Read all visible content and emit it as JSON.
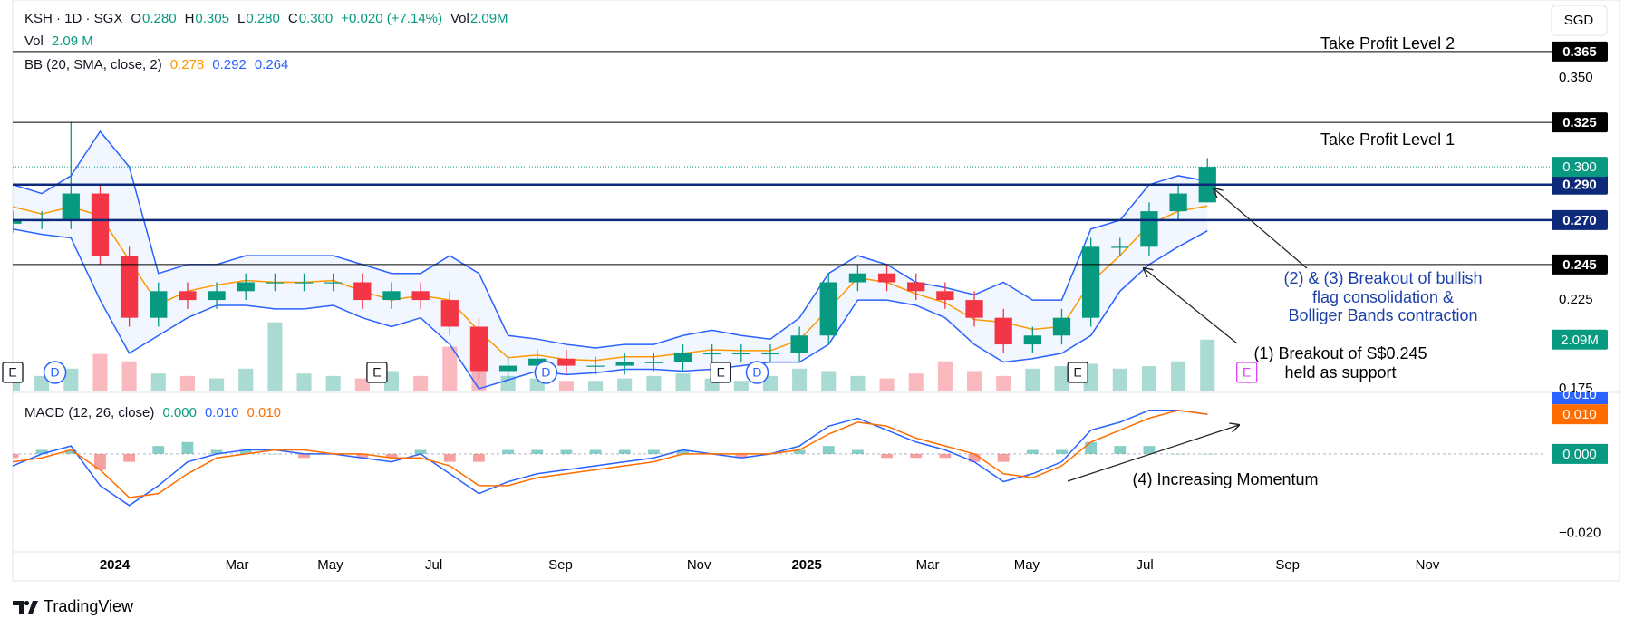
{
  "header": {
    "symbol": "KSH · 1D · SGX",
    "o_label": "O",
    "open": "0.280",
    "h_label": "H",
    "high": "0.305",
    "l_label": "L",
    "low": "0.280",
    "c_label": "C",
    "close": "0.300",
    "change": "+0.020 (+7.14%)",
    "vol_label": "Vol",
    "vol": "2.09M",
    "vol2_label": "Vol",
    "vol2": "2.09 M",
    "bb_label": "BB (20, SMA, close, 2)",
    "bb_basis": "0.278",
    "bb_upper": "0.292",
    "bb_lower": "0.264",
    "macd_label": "MACD (12, 26, close)",
    "macd_hist": "0.000",
    "macd_line": "0.010",
    "macd_signal": "0.010"
  },
  "annotations": {
    "tp2": "Take Profit Level 2",
    "tp1": "Take Profit Level 1",
    "flag1": "(2) & (3) Breakout of bullish",
    "flag2": "flag consolidation &",
    "flag3": "Bolliger Bands contraction",
    "support1": "(1) Breakout of S$0.245",
    "support2": "held as support",
    "momentum": "(4) Increasing Momentum"
  },
  "brand": "TradingView",
  "chart_data": {
    "type": "candlestick",
    "currency": "SGD",
    "x": [
      0,
      2,
      4,
      6,
      8,
      10,
      12,
      14,
      16,
      18,
      20,
      22,
      24,
      26,
      28,
      30,
      32,
      34,
      36,
      38,
      40,
      42,
      44,
      46,
      48,
      50,
      52,
      54,
      56,
      58,
      60,
      62,
      64,
      66,
      68,
      70,
      72,
      74,
      76,
      78,
      80,
      82
    ],
    "xlim": [
      0,
      105
    ],
    "xticks": [
      {
        "value": 7,
        "label": "2024"
      },
      {
        "value": 15.4,
        "label": "Mar"
      },
      {
        "value": 21.8,
        "label": "May"
      },
      {
        "value": 28.9,
        "label": "Jul"
      },
      {
        "value": 37.6,
        "label": "Sep"
      },
      {
        "value": 47.1,
        "label": "Nov"
      },
      {
        "value": 54.5,
        "label": "2025"
      },
      {
        "value": 62.8,
        "label": "Mar"
      },
      {
        "value": 69.6,
        "label": "May"
      },
      {
        "value": 77.7,
        "label": "Jul"
      },
      {
        "value": 87.5,
        "label": "Sep"
      },
      {
        "value": 97.1,
        "label": "Nov"
      }
    ],
    "ylim": [
      0.174,
      0.394
    ],
    "yticks": [
      {
        "value": 0.175,
        "label": "0.175"
      },
      {
        "value": 0.225,
        "label": "0.225"
      },
      {
        "value": 0.35,
        "label": "0.350"
      }
    ],
    "open": [
      0.268,
      0.27,
      0.27,
      0.285,
      0.25,
      0.215,
      0.23,
      0.225,
      0.23,
      0.235,
      0.235,
      0.235,
      0.235,
      0.225,
      0.23,
      0.225,
      0.21,
      0.185,
      0.188,
      0.192,
      0.188,
      0.188,
      0.19,
      0.19,
      0.195,
      0.195,
      0.195,
      0.195,
      0.205,
      0.235,
      0.24,
      0.235,
      0.23,
      0.225,
      0.215,
      0.2,
      0.205,
      0.215,
      0.255,
      0.255,
      0.275,
      0.28
    ],
    "high": [
      0.275,
      0.275,
      0.325,
      0.29,
      0.255,
      0.235,
      0.235,
      0.235,
      0.24,
      0.24,
      0.24,
      0.24,
      0.24,
      0.235,
      0.235,
      0.23,
      0.215,
      0.193,
      0.197,
      0.197,
      0.193,
      0.195,
      0.195,
      0.2,
      0.2,
      0.2,
      0.2,
      0.21,
      0.24,
      0.245,
      0.245,
      0.24,
      0.235,
      0.23,
      0.22,
      0.21,
      0.22,
      0.26,
      0.26,
      0.28,
      0.29,
      0.305
    ],
    "low": [
      0.263,
      0.265,
      0.265,
      0.245,
      0.21,
      0.21,
      0.22,
      0.22,
      0.225,
      0.23,
      0.23,
      0.23,
      0.22,
      0.22,
      0.22,
      0.205,
      0.18,
      0.18,
      0.183,
      0.183,
      0.183,
      0.183,
      0.185,
      0.185,
      0.19,
      0.19,
      0.19,
      0.19,
      0.2,
      0.23,
      0.23,
      0.225,
      0.22,
      0.21,
      0.195,
      0.195,
      0.2,
      0.21,
      0.25,
      0.25,
      0.27,
      0.28
    ],
    "close": [
      0.27,
      0.27,
      0.285,
      0.25,
      0.215,
      0.23,
      0.225,
      0.23,
      0.235,
      0.235,
      0.235,
      0.235,
      0.225,
      0.23,
      0.225,
      0.21,
      0.185,
      0.188,
      0.192,
      0.188,
      0.188,
      0.19,
      0.19,
      0.195,
      0.195,
      0.195,
      0.195,
      0.205,
      0.235,
      0.24,
      0.235,
      0.23,
      0.225,
      0.215,
      0.2,
      0.205,
      0.215,
      0.255,
      0.255,
      0.275,
      0.285,
      0.3
    ],
    "up_color": "#089981",
    "down_color": "#f23645",
    "last_price": {
      "value": 0.3,
      "label": "0.300",
      "color": "#089981"
    },
    "levels": [
      {
        "value": 0.365,
        "label": "0.365",
        "color": "#000000",
        "width": 1
      },
      {
        "value": 0.325,
        "label": "0.325",
        "color": "#000000",
        "width": 1
      },
      {
        "value": 0.29,
        "label": "0.290",
        "color": "#0d2a7a",
        "width": 2.5
      },
      {
        "value": 0.27,
        "label": "0.270",
        "color": "#0d2a7a",
        "width": 2.5
      },
      {
        "value": 0.245,
        "label": "0.245",
        "color": "#000000",
        "width": 1
      }
    ],
    "bollinger": {
      "upper": [
        0.29,
        0.285,
        0.295,
        0.32,
        0.3,
        0.24,
        0.245,
        0.245,
        0.25,
        0.25,
        0.25,
        0.25,
        0.245,
        0.24,
        0.24,
        0.25,
        0.24,
        0.205,
        0.203,
        0.2,
        0.198,
        0.2,
        0.2,
        0.205,
        0.208,
        0.205,
        0.203,
        0.215,
        0.24,
        0.25,
        0.245,
        0.235,
        0.232,
        0.228,
        0.235,
        0.225,
        0.225,
        0.265,
        0.27,
        0.29,
        0.295,
        0.292
      ],
      "basis": [
        0.2775,
        0.2735,
        0.2775,
        0.2725,
        0.2475,
        0.2225,
        0.23,
        0.2335,
        0.236,
        0.235,
        0.235,
        0.236,
        0.23,
        0.225,
        0.2275,
        0.225,
        0.2075,
        0.1925,
        0.194,
        0.1915,
        0.191,
        0.193,
        0.193,
        0.195,
        0.197,
        0.1965,
        0.1965,
        0.2025,
        0.22,
        0.2375,
        0.235,
        0.2285,
        0.2235,
        0.214,
        0.2125,
        0.2085,
        0.21,
        0.235,
        0.25,
        0.2675,
        0.275,
        0.278
      ],
      "lower": [
        0.265,
        0.262,
        0.26,
        0.225,
        0.195,
        0.205,
        0.215,
        0.222,
        0.222,
        0.22,
        0.22,
        0.222,
        0.215,
        0.21,
        0.215,
        0.2,
        0.175,
        0.18,
        0.185,
        0.183,
        0.184,
        0.186,
        0.186,
        0.185,
        0.186,
        0.188,
        0.19,
        0.19,
        0.2,
        0.225,
        0.225,
        0.222,
        0.215,
        0.2,
        0.19,
        0.192,
        0.195,
        0.205,
        0.23,
        0.245,
        0.255,
        0.264
      ],
      "band_color": "#2962ff",
      "basis_color": "#ff9800"
    },
    "volume": {
      "values": [
        400000,
        600000,
        900000,
        1500000,
        1200000,
        700000,
        600000,
        500000,
        900000,
        2800000,
        700000,
        600000,
        500000,
        800000,
        600000,
        1800000,
        900000,
        600000,
        500000,
        400000,
        400000,
        500000,
        600000,
        700000,
        500000,
        400000,
        600000,
        900000,
        800000,
        600000,
        500000,
        700000,
        1200000,
        800000,
        600000,
        900000,
        1000000,
        1100000,
        900000,
        1000000,
        1200000,
        2090000
      ],
      "ylim": [
        0,
        4500000
      ],
      "last_label": "2.09M"
    },
    "macd": {
      "macd": [
        -0.003,
        0,
        0.002,
        -0.008,
        -0.013,
        -0.008,
        -0.002,
        0,
        0.001,
        0.001,
        0,
        0,
        -0.001,
        -0.002,
        0,
        -0.005,
        -0.01,
        -0.007,
        -0.005,
        -0.004,
        -0.003,
        -0.002,
        -0.001,
        0.001,
        0,
        -0.001,
        0,
        0.002,
        0.007,
        0.009,
        0.006,
        0.003,
        0.001,
        -0.002,
        -0.007,
        -0.005,
        -0.002,
        0.006,
        0.008,
        0.011,
        0.011,
        0.01
      ],
      "signal": [
        -0.002,
        -0.001,
        0.001,
        -0.004,
        -0.011,
        -0.01,
        -0.005,
        -0.001,
        0,
        0.001,
        0.001,
        0,
        0,
        -0.001,
        -0.001,
        -0.003,
        -0.008,
        -0.008,
        -0.006,
        -0.005,
        -0.004,
        -0.003,
        -0.002,
        0,
        0,
        0,
        0,
        0.001,
        0.005,
        0.008,
        0.007,
        0.004,
        0.002,
        0,
        -0.005,
        -0.006,
        -0.003,
        0.003,
        0.006,
        0.009,
        0.011,
        0.01
      ],
      "histogram": [
        -0.001,
        0.001,
        0.001,
        -0.004,
        -0.002,
        0.002,
        0.003,
        0.001,
        0.001,
        0,
        -0.001,
        0,
        -0.001,
        -0.001,
        0.001,
        -0.002,
        -0.002,
        0.001,
        0.001,
        0.001,
        0.001,
        0.001,
        0.001,
        0.001,
        0,
        -0.001,
        0,
        0.001,
        0.002,
        0.001,
        -0.001,
        -0.001,
        -0.001,
        -0.002,
        -0.002,
        0.001,
        0.001,
        0.003,
        0.002,
        0.002,
        0,
        0
      ],
      "ylim": [
        -0.0247,
        0.0146
      ],
      "yticks": [
        {
          "value": -0.02,
          "label": "−0.020"
        }
      ],
      "macd_color": "#2962ff",
      "signal_color": "#ff6d00",
      "hist_up_color": "#26a69a",
      "hist_down_color": "#ef5350",
      "badges": [
        {
          "value": 0.01,
          "label": "0.010",
          "color": "#2962ff"
        },
        {
          "value": 0.01,
          "label": "0.010",
          "color": "#ff6d00"
        },
        {
          "value": 0,
          "label": "0.000",
          "color": "#089981"
        }
      ]
    },
    "events": [
      {
        "x": 0,
        "label": "E",
        "shape": "square",
        "color": "#131722"
      },
      {
        "x": 2.9,
        "label": "D",
        "shape": "circle",
        "color": "#2962ff"
      },
      {
        "x": 25,
        "label": "E",
        "shape": "square",
        "color": "#131722"
      },
      {
        "x": 36.6,
        "label": "D",
        "shape": "circle",
        "color": "#2962ff"
      },
      {
        "x": 48.6,
        "label": "E",
        "shape": "square",
        "color": "#131722"
      },
      {
        "x": 51.1,
        "label": "D",
        "shape": "circle",
        "color": "#2962ff"
      },
      {
        "x": 73.1,
        "label": "E",
        "shape": "square",
        "color": "#131722"
      },
      {
        "x": 84.7,
        "label": "E",
        "shape": "square",
        "color": "#e040fb"
      }
    ]
  }
}
